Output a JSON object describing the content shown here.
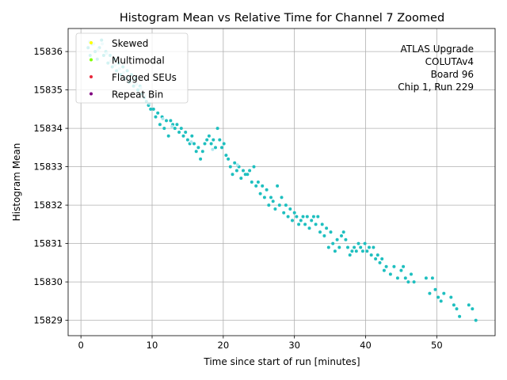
{
  "chart_data": {
    "type": "scatter",
    "title": "Histogram Mean vs Relative Time for Channel 7 Zoomed",
    "xlabel": "Time since start of run [minutes]",
    "ylabel": "Histogram Mean",
    "xlim": [
      -1.8,
      58.2
    ],
    "ylim": [
      15828.6,
      15836.6
    ],
    "xticks": [
      "0",
      "10",
      "20",
      "30",
      "40",
      "50"
    ],
    "yticks": [
      "15829",
      "15830",
      "15831",
      "15832",
      "15833",
      "15834",
      "15835",
      "15836"
    ],
    "grid": true,
    "legend_position": "top-left",
    "legend": [
      {
        "label": "Skewed",
        "color": "#ffff00"
      },
      {
        "label": "Multimodal",
        "color": "#7fff00"
      },
      {
        "label": "Flagged SEUs",
        "color": "#e8283c"
      },
      {
        "label": "Repeat Bin",
        "color": "#800080"
      }
    ],
    "annotation": [
      "ATLAS Upgrade",
      "COLUTAv4",
      "Board 96",
      "Chip 1, Run 229"
    ],
    "series": [
      {
        "color": "#1ebfbf",
        "points": [
          [
            1.0,
            15836.1
          ],
          [
            1.3,
            15835.9
          ],
          [
            1.6,
            15836.2
          ],
          [
            2.0,
            15836.0
          ],
          [
            2.3,
            15835.8
          ],
          [
            2.6,
            15836.1
          ],
          [
            2.9,
            15836.3
          ],
          [
            3.2,
            15835.9
          ],
          [
            3.5,
            15836.0
          ],
          [
            3.8,
            15835.7
          ],
          [
            4.1,
            15835.9
          ],
          [
            4.4,
            15835.6
          ],
          [
            4.7,
            15835.8
          ],
          [
            5.0,
            15835.5
          ],
          [
            5.3,
            15835.7
          ],
          [
            5.6,
            15835.4
          ],
          [
            5.9,
            15835.6
          ],
          [
            6.2,
            15835.3
          ],
          [
            6.5,
            15835.5
          ],
          [
            6.8,
            15835.2
          ],
          [
            7.1,
            15835.4
          ],
          [
            7.4,
            15835.1
          ],
          [
            7.7,
            15835.3
          ],
          [
            8.0,
            15835.0
          ],
          [
            8.3,
            15835.1
          ],
          [
            8.6,
            15834.9
          ],
          [
            8.9,
            15834.8
          ],
          [
            9.2,
            15834.7
          ],
          [
            9.5,
            15834.6
          ],
          [
            9.8,
            15834.5
          ],
          [
            10.2,
            15834.5
          ],
          [
            10.5,
            15834.3
          ],
          [
            10.8,
            15834.4
          ],
          [
            11.1,
            15834.1
          ],
          [
            11.4,
            15834.3
          ],
          [
            11.7,
            15834.0
          ],
          [
            12.0,
            15834.2
          ],
          [
            12.3,
            15833.8
          ],
          [
            12.6,
            15834.2
          ],
          [
            12.9,
            15834.1
          ],
          [
            13.2,
            15834.0
          ],
          [
            13.5,
            15834.1
          ],
          [
            13.8,
            15833.9
          ],
          [
            14.1,
            15834.0
          ],
          [
            14.4,
            15833.8
          ],
          [
            14.7,
            15833.9
          ],
          [
            15.0,
            15833.7
          ],
          [
            15.3,
            15833.6
          ],
          [
            15.6,
            15833.8
          ],
          [
            15.9,
            15833.6
          ],
          [
            16.2,
            15833.4
          ],
          [
            16.5,
            15833.5
          ],
          [
            16.8,
            15833.2
          ],
          [
            17.1,
            15833.4
          ],
          [
            17.4,
            15833.6
          ],
          [
            17.7,
            15833.7
          ],
          [
            18.0,
            15833.8
          ],
          [
            18.3,
            15833.6
          ],
          [
            18.6,
            15833.7
          ],
          [
            18.9,
            15833.5
          ],
          [
            19.2,
            15834.0
          ],
          [
            19.5,
            15833.7
          ],
          [
            19.8,
            15833.5
          ],
          [
            20.1,
            15833.6
          ],
          [
            20.4,
            15833.3
          ],
          [
            20.7,
            15833.2
          ],
          [
            21.0,
            15833.0
          ],
          [
            21.3,
            15832.8
          ],
          [
            21.6,
            15833.1
          ],
          [
            21.9,
            15832.9
          ],
          [
            22.2,
            15833.0
          ],
          [
            22.5,
            15832.7
          ],
          [
            22.8,
            15832.9
          ],
          [
            23.1,
            15832.8
          ],
          [
            23.4,
            15832.8
          ],
          [
            23.7,
            15832.9
          ],
          [
            24.0,
            15832.6
          ],
          [
            24.3,
            15833.0
          ],
          [
            24.6,
            15832.5
          ],
          [
            24.9,
            15832.6
          ],
          [
            25.2,
            15832.3
          ],
          [
            25.5,
            15832.5
          ],
          [
            25.8,
            15832.2
          ],
          [
            26.1,
            15832.4
          ],
          [
            26.4,
            15832.0
          ],
          [
            26.7,
            15832.2
          ],
          [
            27.0,
            15832.1
          ],
          [
            27.3,
            15831.9
          ],
          [
            27.6,
            15832.5
          ],
          [
            27.9,
            15832.0
          ],
          [
            28.2,
            15832.2
          ],
          [
            28.5,
            15831.8
          ],
          [
            28.8,
            15832.0
          ],
          [
            29.1,
            15831.7
          ],
          [
            29.4,
            15831.9
          ],
          [
            29.7,
            15831.6
          ],
          [
            30.0,
            15831.8
          ],
          [
            30.3,
            15831.7
          ],
          [
            30.6,
            15831.5
          ],
          [
            30.9,
            15831.6
          ],
          [
            31.2,
            15831.7
          ],
          [
            31.5,
            15831.5
          ],
          [
            31.8,
            15831.7
          ],
          [
            32.1,
            15831.4
          ],
          [
            32.4,
            15831.6
          ],
          [
            32.7,
            15831.7
          ],
          [
            33.0,
            15831.5
          ],
          [
            33.3,
            15831.7
          ],
          [
            33.6,
            15831.3
          ],
          [
            33.9,
            15831.5
          ],
          [
            34.2,
            15831.2
          ],
          [
            34.5,
            15831.4
          ],
          [
            34.8,
            15830.9
          ],
          [
            35.1,
            15831.3
          ],
          [
            35.4,
            15831.0
          ],
          [
            35.7,
            15830.8
          ],
          [
            36.0,
            15831.1
          ],
          [
            36.3,
            15830.9
          ],
          [
            36.6,
            15831.2
          ],
          [
            36.9,
            15831.3
          ],
          [
            37.2,
            15831.1
          ],
          [
            37.5,
            15830.9
          ],
          [
            37.8,
            15830.7
          ],
          [
            38.1,
            15830.8
          ],
          [
            38.4,
            15830.9
          ],
          [
            38.7,
            15830.8
          ],
          [
            39.0,
            15831.0
          ],
          [
            39.3,
            15830.9
          ],
          [
            39.6,
            15830.8
          ],
          [
            39.9,
            15831.0
          ],
          [
            40.2,
            15830.8
          ],
          [
            40.5,
            15830.9
          ],
          [
            40.8,
            15830.7
          ],
          [
            41.1,
            15830.9
          ],
          [
            41.4,
            15830.6
          ],
          [
            41.7,
            15830.7
          ],
          [
            42.0,
            15830.5
          ],
          [
            42.3,
            15830.6
          ],
          [
            42.6,
            15830.3
          ],
          [
            42.9,
            15830.4
          ],
          [
            43.5,
            15830.2
          ],
          [
            44.0,
            15830.4
          ],
          [
            44.5,
            15830.1
          ],
          [
            45.0,
            15830.3
          ],
          [
            45.3,
            15830.4
          ],
          [
            45.6,
            15830.1
          ],
          [
            46.0,
            15830.0
          ],
          [
            46.4,
            15830.2
          ],
          [
            46.8,
            15830.0
          ],
          [
            48.5,
            15830.1
          ],
          [
            49.0,
            15829.7
          ],
          [
            49.4,
            15830.1
          ],
          [
            49.8,
            15829.8
          ],
          [
            50.2,
            15829.6
          ],
          [
            50.6,
            15829.5
          ],
          [
            51.0,
            15829.7
          ],
          [
            52.0,
            15829.6
          ],
          [
            52.4,
            15829.4
          ],
          [
            52.8,
            15829.3
          ],
          [
            53.2,
            15829.1
          ],
          [
            54.5,
            15829.4
          ],
          [
            55.0,
            15829.3
          ],
          [
            55.5,
            15829.0
          ]
        ]
      },
      {
        "color": "#aee8ef",
        "points": [
          [
            1.2,
            15836.25
          ],
          [
            1.8,
            15836.2
          ],
          [
            2.4,
            15836.05
          ],
          [
            3.0,
            15836.2
          ],
          [
            3.6,
            15835.95
          ],
          [
            4.2,
            15835.75
          ],
          [
            4.8,
            15835.65
          ],
          [
            5.4,
            15835.55
          ],
          [
            6.0,
            15835.45
          ],
          [
            6.6,
            15835.35
          ],
          [
            7.2,
            15835.25
          ],
          [
            7.8,
            15835.15
          ],
          [
            8.4,
            15835.05
          ],
          [
            9.0,
            15834.85
          ],
          [
            9.6,
            15834.65
          ],
          [
            11.5,
            15834.25
          ],
          [
            12.8,
            15834.05
          ],
          [
            15.5,
            15833.65
          ],
          [
            18.5,
            15833.45
          ],
          [
            22.0,
            15833.05
          ]
        ]
      }
    ]
  }
}
